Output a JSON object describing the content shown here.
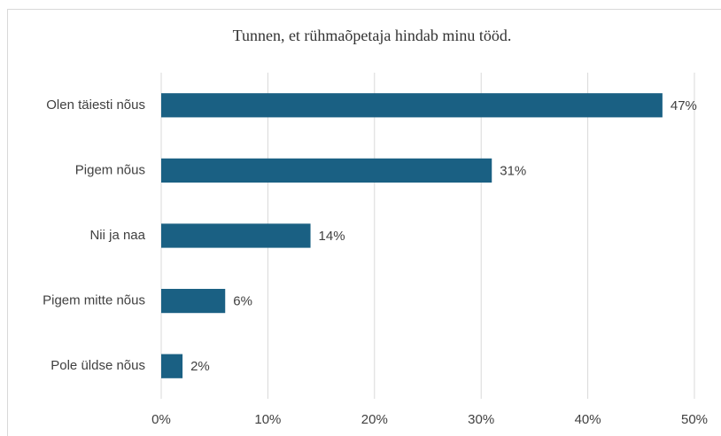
{
  "chart_data": {
    "type": "bar",
    "orientation": "horizontal",
    "title": "Tunnen, et rühmaõpetaja hindab minu tööd.",
    "categories": [
      "Olen täiesti nõus",
      "Pigem nõus",
      "Nii ja naa",
      "Pigem mitte nõus",
      "Pole üldse nõus"
    ],
    "values": [
      47,
      31,
      14,
      6,
      2
    ],
    "value_labels": [
      "47%",
      "31%",
      "14%",
      "6%",
      "2%"
    ],
    "color": "#1a6083",
    "xlim": [
      0,
      50
    ],
    "xticks": [
      {
        "value": 0,
        "label": "0%"
      },
      {
        "value": 10,
        "label": "10%"
      },
      {
        "value": 20,
        "label": "20%"
      },
      {
        "value": 30,
        "label": "30%"
      },
      {
        "value": 40,
        "label": "40%"
      },
      {
        "value": 50,
        "label": "50%"
      }
    ],
    "grid": true
  }
}
